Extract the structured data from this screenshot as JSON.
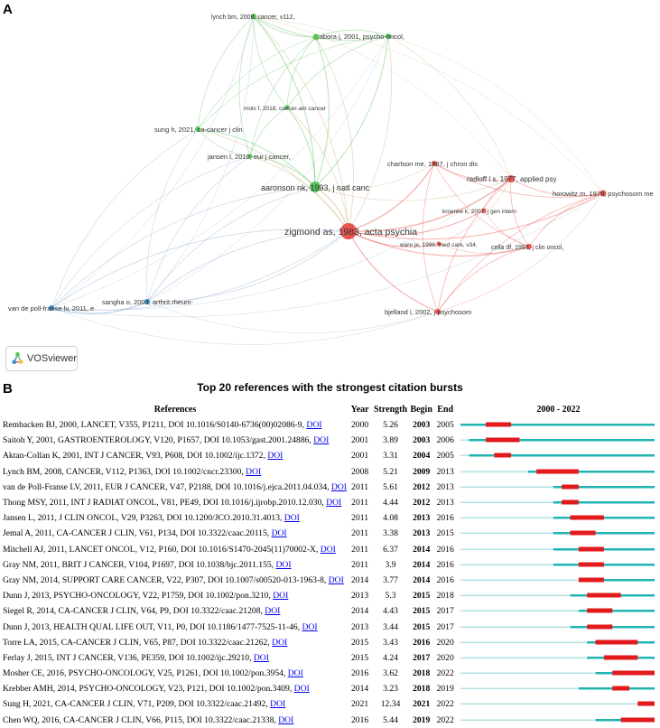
{
  "panel_a_label": "A",
  "panel_b_label": "B",
  "vosviewer_label": "VOSviewer",
  "colors": {
    "red_cluster": "#e8554e",
    "green_cluster": "#5cc35c",
    "blue_cluster": "#3a8fcb",
    "burst": "#e31a1c",
    "timeline": "#22b3b3",
    "timeline_light": "#b5e3e3"
  },
  "network": {
    "nodes": [
      {
        "label": "lynch bm, 2008, cancer, v112,",
        "cluster": "green"
      },
      {
        "label": "zabora j, 2001, psycho-oncol,",
        "cluster": "green"
      },
      {
        "label": "mols f, 2018, cancer-am cancer",
        "cluster": "green"
      },
      {
        "label": "sung h, 2021, ca-cancer j clin",
        "cluster": "green"
      },
      {
        "label": "jansen l, 2010, eur j cancer,",
        "cluster": "green"
      },
      {
        "label": "aaronson nk, 1993, j natl canc",
        "cluster": "green"
      },
      {
        "label": "charlson me, 1987, j chron dis",
        "cluster": "red"
      },
      {
        "label": "radloff l s, 1977, applied psy",
        "cluster": "red"
      },
      {
        "label": "horowitz m, 1979, psychosom me",
        "cluster": "red"
      },
      {
        "label": "kroenke k, 2001, j gen intern",
        "cluster": "red"
      },
      {
        "label": "zigmond as, 1983, acta psychia",
        "cluster": "red"
      },
      {
        "label": "ware je, 1996, med care, v34,",
        "cluster": "red"
      },
      {
        "label": "cella df, 1993, j clin oncol,",
        "cluster": "red"
      },
      {
        "label": "bjelland i, 2002, j psychosom",
        "cluster": "red"
      },
      {
        "label": "van de poll-franse lv, 2011, e",
        "cluster": "blue"
      },
      {
        "label": "sangha o, 2003, arthrit rheum-",
        "cluster": "blue"
      },
      {
        "label": "",
        "cluster": "green"
      }
    ]
  },
  "chart_data": {
    "type": "table",
    "title": "Top 20 references with the strongest citation bursts",
    "columns": [
      "References",
      "Year",
      "Strength",
      "Begin",
      "End",
      "2000 - 2022"
    ],
    "timeline_range": [
      2000,
      2022
    ],
    "rows": [
      {
        "ref": "Rembacken BJ, 2000, LANCET, V355, P1211, DOI 10.1016/S0140-6736(00)02086-9,",
        "year": 2000,
        "strength": "5.26",
        "begin": 2003,
        "end": 2005
      },
      {
        "ref": "Saitoh Y, 2001, GASTROENTEROLOGY, V120, P1657, DOI 10.1053/gast.2001.24886,",
        "year": 2001,
        "strength": "3.89",
        "begin": 2003,
        "end": 2006
      },
      {
        "ref": "Aktan-Collan K, 2001, INT J CANCER, V93, P608, DOI 10.1002/ijc.1372,",
        "year": 2001,
        "strength": "3.31",
        "begin": 2004,
        "end": 2005
      },
      {
        "ref": "Lynch BM, 2008, CANCER, V112, P1363, DOI 10.1002/cncr.23300,",
        "year": 2008,
        "strength": "5.21",
        "begin": 2009,
        "end": 2013
      },
      {
        "ref": "van de Poll-Franse LV, 2011, EUR J CANCER, V47, P2188, DOI 10.1016/j.ejca.2011.04.034,",
        "year": 2011,
        "strength": "5.61",
        "begin": 2012,
        "end": 2013
      },
      {
        "ref": "Thong MSY, 2011, INT J RADIAT ONCOL, V81, PE49, DOI 10.1016/j.ijrobp.2010.12.030,",
        "year": 2011,
        "strength": "4.44",
        "begin": 2012,
        "end": 2013
      },
      {
        "ref": "Jansen L, 2011, J CLIN ONCOL, V29, P3263, DOI 10.1200/JCO.2010.31.4013,",
        "year": 2011,
        "strength": "4.08",
        "begin": 2013,
        "end": 2016
      },
      {
        "ref": "Jemal A, 2011, CA-CANCER J CLIN, V61, P134, DOI 10.3322/caac.20115,",
        "year": 2011,
        "strength": "3.38",
        "begin": 2013,
        "end": 2015
      },
      {
        "ref": "Mitchell AJ, 2011, LANCET ONCOL, V12, P160, DOI 10.1016/S1470-2045(11)70002-X,",
        "year": 2011,
        "strength": "6.37",
        "begin": 2014,
        "end": 2016
      },
      {
        "ref": "Gray NM, 2011, BRIT J CANCER, V104, P1697, DOI 10.1038/bjc.2011.155,",
        "year": 2011,
        "strength": "3.9",
        "begin": 2014,
        "end": 2016
      },
      {
        "ref": "Gray NM, 2014, SUPPORT CARE CANCER, V22, P307, DOI 10.1007/s00520-013-1963-8,",
        "year": 2014,
        "strength": "3.77",
        "begin": 2014,
        "end": 2016
      },
      {
        "ref": "Dunn J, 2013, PSYCHO-ONCOLOGY, V22, P1759, DOI 10.1002/pon.3210,",
        "year": 2013,
        "strength": "5.3",
        "begin": 2015,
        "end": 2018
      },
      {
        "ref": "Siegel R, 2014, CA-CANCER J CLIN, V64, P9, DOI 10.3322/caac.21208,",
        "year": 2014,
        "strength": "4.43",
        "begin": 2015,
        "end": 2017
      },
      {
        "ref": "Dunn J, 2013, HEALTH QUAL LIFE OUT, V11, P0, DOI 10.1186/1477-7525-11-46,",
        "year": 2013,
        "strength": "3.44",
        "begin": 2015,
        "end": 2017
      },
      {
        "ref": "Torre LA, 2015, CA-CANCER J CLIN, V65, P87, DOI 10.3322/caac.21262,",
        "year": 2015,
        "strength": "3.43",
        "begin": 2016,
        "end": 2020
      },
      {
        "ref": "Ferlay J, 2015, INT J CANCER, V136, PE359, DOI 10.1002/ijc.29210,",
        "year": 2015,
        "strength": "4.24",
        "begin": 2017,
        "end": 2020
      },
      {
        "ref": "Mosher CE, 2016, PSYCHO-ONCOLOGY, V25, P1261, DOI 10.1002/pon.3954,",
        "year": 2016,
        "strength": "3.62",
        "begin": 2018,
        "end": 2022
      },
      {
        "ref": "Krebber AMH, 2014, PSYCHO-ONCOLOGY, V23, P121, DOI 10.1002/pon.3409,",
        "year": 2014,
        "strength": "3.23",
        "begin": 2018,
        "end": 2019
      },
      {
        "ref": "Sung H, 2021, CA-CANCER J CLIN, V71, P209, DOI 10.3322/caac.21492,",
        "year": 2021,
        "strength": "12.34",
        "begin": 2021,
        "end": 2022
      },
      {
        "ref": "Chen WQ, 2016, CA-CANCER J CLIN, V66, P115, DOI 10.3322/caac.21338,",
        "year": 2016,
        "strength": "5.44",
        "begin": 2019,
        "end": 2022
      }
    ],
    "doi_label": "DOI"
  }
}
